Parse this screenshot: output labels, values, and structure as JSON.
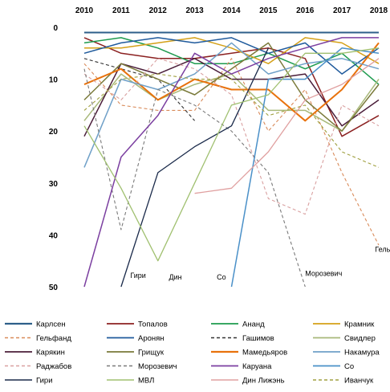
{
  "chart_data": {
    "type": "line",
    "x": [
      2010,
      2011,
      2012,
      2013,
      2014,
      2015,
      2016,
      2017,
      2018
    ],
    "ylim": [
      0,
      50
    ],
    "y_inverted": true,
    "yticks": [
      0,
      10,
      20,
      30,
      40,
      50
    ],
    "grid": false,
    "legend_position": "bottom",
    "series": [
      {
        "name": "Карлсен",
        "color": "#2E5F8A",
        "dash": "solid",
        "width": 2.0,
        "values": [
          1,
          1,
          1,
          1,
          1,
          1,
          1,
          1,
          1
        ]
      },
      {
        "name": "Топалов",
        "color": "#8B2121",
        "dash": "solid",
        "width": 1.5,
        "values": [
          2,
          5,
          6,
          6,
          5,
          4,
          6,
          21,
          17
        ]
      },
      {
        "name": "Ананд",
        "color": "#1E9B4E",
        "dash": "solid",
        "width": 1.5,
        "values": [
          3,
          2,
          4,
          7,
          7,
          5,
          8,
          5,
          11
        ]
      },
      {
        "name": "Крамник",
        "color": "#D4A017",
        "dash": "solid",
        "width": 1.5,
        "values": [
          4,
          4,
          3,
          2,
          4,
          7,
          2,
          3,
          7
        ]
      },
      {
        "name": "Гельфанд",
        "color": "#D98B5A",
        "dash": "dashed",
        "width": 1.1,
        "values": [
          7,
          15,
          16,
          16,
          6,
          20,
          12,
          28,
          42
        ]
      },
      {
        "name": "Аронян",
        "color": "#1F5A9C",
        "dash": "solid",
        "width": 1.5,
        "values": [
          5,
          3,
          2,
          3,
          2,
          5,
          3,
          9,
          4
        ]
      },
      {
        "name": "Гашимов",
        "color": "#333333",
        "dash": "dashed",
        "width": 1.1,
        "values": [
          6,
          8,
          10,
          18,
          null,
          null,
          null,
          null,
          null
        ]
      },
      {
        "name": "Свидлер",
        "color": "#A9B97A",
        "dash": "solid",
        "width": 1.5,
        "values": [
          18,
          9,
          14,
          11,
          9,
          16,
          16,
          20,
          10
        ]
      },
      {
        "name": "Карякин",
        "color": "#4B1E3A",
        "dash": "solid",
        "width": 1.5,
        "values": [
          21,
          7,
          9,
          6,
          10,
          10,
          9,
          19,
          14
        ]
      },
      {
        "name": "Грищук",
        "color": "#7A7A3A",
        "dash": "solid",
        "width": 1.5,
        "values": [
          14,
          7,
          10,
          13,
          8,
          3,
          14,
          20,
          11
        ]
      },
      {
        "name": "Мамедьяров",
        "color": "#E8720C",
        "dash": "solid",
        "width": 2.0,
        "values": [
          11,
          8,
          14,
          10,
          12,
          12,
          18,
          12,
          3
        ]
      },
      {
        "name": "Накамура",
        "color": "#6FA0C8",
        "dash": "solid",
        "width": 1.5,
        "values": [
          27,
          10,
          12,
          9,
          3,
          9,
          7,
          6,
          8
        ]
      },
      {
        "name": "Раджабов",
        "color": "#D9A0A0",
        "dash": "dashed",
        "width": 1.1,
        "values": [
          9,
          14,
          6,
          8,
          13,
          33,
          36,
          15,
          19
        ]
      },
      {
        "name": "Морозевич",
        "color": "#7A7A7A",
        "dash": "dashed",
        "width": 1.1,
        "values": [
          8,
          39,
          12,
          15,
          20,
          28,
          50,
          null,
          null
        ]
      },
      {
        "name": "Каруана",
        "color": "#7B3FA0",
        "dash": "solid",
        "width": 1.5,
        "values": [
          50,
          25,
          17,
          5,
          9,
          6,
          4,
          2,
          2
        ]
      },
      {
        "name": "Со",
        "color": "#4A90C8",
        "dash": "solid",
        "width": 1.5,
        "values": [
          null,
          null,
          null,
          null,
          50,
          10,
          10,
          4,
          5
        ]
      },
      {
        "name": "Гири",
        "color": "#1A2A4A",
        "dash": "solid",
        "width": 1.3,
        "values": [
          null,
          50,
          28,
          23,
          19,
          4,
          null,
          null,
          null
        ]
      },
      {
        "name": "МВЛ",
        "color": "#A0C070",
        "dash": "solid",
        "width": 1.3,
        "values": [
          19,
          31,
          45,
          30,
          15,
          13,
          5,
          5,
          4
        ]
      },
      {
        "name": "Дин Лижэнь",
        "color": "#E0A0A0",
        "dash": "solid",
        "width": 1.3,
        "values": [
          null,
          null,
          null,
          32,
          31,
          24,
          14,
          11,
          6
        ]
      },
      {
        "name": "Иванчук",
        "color": "#A0A040",
        "dash": "dashed",
        "width": 1.1,
        "values": [
          16,
          10,
          9,
          10,
          10,
          17,
          15,
          24,
          27
        ]
      }
    ],
    "annotations": [
      {
        "text": "Гири",
        "x": 2011.25,
        "y": 48.3
      },
      {
        "text": "Дин",
        "x": 2012.3,
        "y": 48.6
      },
      {
        "text": "Со",
        "x": 2013.6,
        "y": 48.6
      },
      {
        "text": "Морозевич",
        "x": 2016.0,
        "y": 47.9
      },
      {
        "text": "Гельфанд",
        "x": 2017.9,
        "y": 43.3
      }
    ]
  }
}
